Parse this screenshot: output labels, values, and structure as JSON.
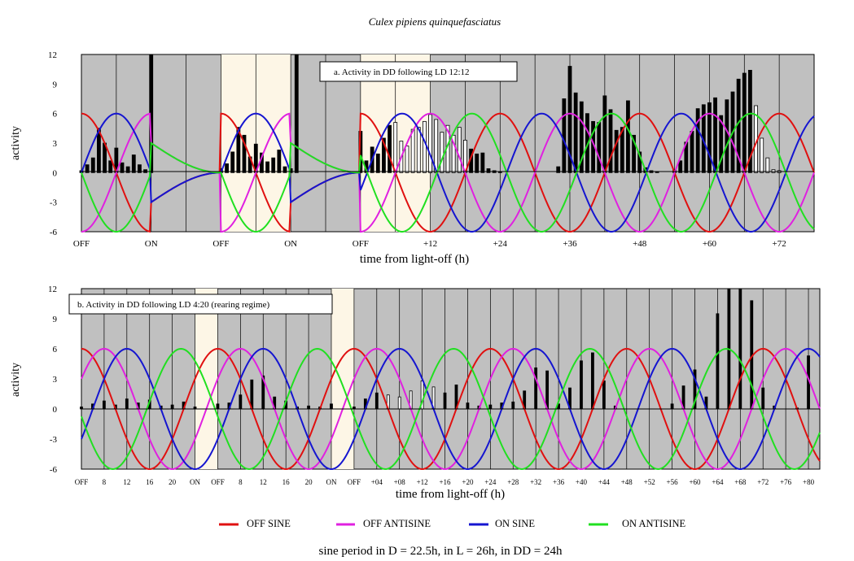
{
  "title": "Culex pipiens quinquefasciatus",
  "footer": "sine period in D = 22.5h, in L = 26h, in DD = 24h",
  "colors": {
    "off_sine": "#e01010",
    "off_antisine": "#e020e0",
    "on_sine": "#1515d0",
    "on_antisine": "#20e020",
    "dark_background": "#c0c0c0",
    "light_background": "#fdf6e6"
  },
  "legend": [
    {
      "label": "OFF SINE",
      "color": "#e01010"
    },
    {
      "label": "OFF ANTISINE",
      "color": "#e020e0"
    },
    {
      "label": "ON SINE",
      "color": "#1515d0"
    },
    {
      "label": "ON ANTISINE",
      "color": "#20e020"
    }
  ],
  "chart_data": [
    {
      "type": "bar",
      "annotation": "a.  Activity in DD following LD 12:12",
      "xlabel": "time from light-off (h)",
      "ylabel": "activity",
      "ylim": [
        -6,
        12
      ],
      "yticks": [
        -6,
        -3,
        0,
        3,
        6,
        9,
        12
      ],
      "xticks": [
        "OFF",
        "ON",
        "OFF",
        "ON",
        "OFF",
        "+12",
        "+24",
        "+36",
        "+48",
        "+60",
        "+72"
      ],
      "xlim_hours": [
        -48,
        78
      ],
      "light_phases_hours": [
        [
          -24,
          -12
        ],
        [
          0,
          12
        ]
      ],
      "light_phases_label": "ON → OFF",
      "phase_boundaries": {
        "light_on": [
          -36,
          -12
        ],
        "light_off": [
          -48,
          -24,
          0
        ]
      },
      "series": [
        {
          "name": "OFF SINE",
          "values_hours": [
            -48,
            -24,
            0
          ],
          "values_note_hours": "curves restart at light-off",
          "curve": "off_sine"
        },
        {
          "name": "OFF ANTISINE",
          "curve": "off_antisine"
        },
        {
          "name": "ON SINE",
          "curve": "on_sine"
        },
        {
          "name": "ON ANTISINE",
          "curve": "on_antisine"
        }
      ],
      "activity_hours": [
        -48,
        -47,
        -46,
        -45,
        -44,
        -43,
        -42,
        -41,
        -40,
        -39,
        -38,
        -37,
        -36,
        -24,
        -23,
        -22,
        -21,
        -20,
        -19,
        -18,
        -17,
        -16,
        -15,
        -14,
        -13,
        -12,
        -11,
        0,
        1,
        2,
        3,
        4,
        5,
        6,
        7,
        8,
        9,
        10,
        11,
        12,
        13,
        14,
        15,
        16,
        17,
        18,
        19,
        20,
        21,
        22,
        23,
        24,
        25,
        26,
        27,
        28,
        29,
        30,
        31,
        32,
        33,
        34,
        35,
        36,
        37,
        38,
        39,
        40,
        41,
        42,
        43,
        44,
        45,
        46,
        47,
        48,
        49,
        50,
        51,
        52,
        53,
        54,
        55,
        56,
        57,
        58,
        59,
        60,
        61,
        62,
        63,
        64,
        65,
        66,
        67,
        68,
        69,
        70,
        71,
        72,
        73,
        74,
        75
      ],
      "activity_values": [
        0.2,
        0.8,
        1.5,
        4.5,
        3.0,
        1.2,
        2.5,
        1.0,
        0.6,
        1.8,
        0.8,
        0.3,
        12,
        0.4,
        0.9,
        2.1,
        4.6,
        3.8,
        1.6,
        2.9,
        2.0,
        1.1,
        1.5,
        2.3,
        0.6,
        0.4,
        12,
        4.2,
        1.2,
        2.6,
        1.9,
        3.5,
        4.8,
        5.1,
        3.2,
        2.7,
        4.4,
        4.6,
        5.2,
        5.9,
        5.4,
        4.1,
        4.8,
        3.8,
        4.6,
        3.3,
        2.4,
        1.9,
        2.0,
        0.4,
        0.2,
        0.1,
        0.0,
        0.0,
        0.0,
        0.0,
        0.0,
        0.0,
        0.0,
        0.0,
        0.0,
        0.6,
        7.5,
        10.8,
        8.1,
        7.2,
        6.0,
        5.2,
        5.1,
        7.8,
        6.4,
        4.3,
        4.6,
        7.3,
        3.8,
        2.1,
        0.5,
        0.2,
        0.1,
        0.0,
        0.0,
        0.3,
        1.2,
        3.1,
        4.2,
        6.5,
        6.9,
        7.1,
        7.6,
        5.8,
        7.4,
        8.2,
        9.5,
        10.1,
        10.4,
        6.8,
        3.5,
        1.5,
        0.3,
        0.2
      ]
    },
    {
      "type": "bar",
      "annotation": "b.  Activity in DD following LD 4:20 (rearing regime)",
      "xlabel": "time from light-off (h)",
      "ylabel": "activity",
      "ylim": [
        -6,
        12
      ],
      "yticks": [
        -6,
        -3,
        0,
        3,
        6,
        9,
        12
      ],
      "xticks": [
        "OFF",
        "8",
        "12",
        "16",
        "20",
        "ON",
        "OFF",
        "8",
        "12",
        "16",
        "20",
        "ON",
        "OFF",
        "+04",
        "+08",
        "+12",
        "+16",
        "+20",
        "+24",
        "+28",
        "+32",
        "+36",
        "+40",
        "+44",
        "+48",
        "+52",
        "+56",
        "+60",
        "+64",
        "+68",
        "+72",
        "+76",
        "+80"
      ],
      "xlim_hours": [
        -48,
        82
      ],
      "light_phases_hours": [
        [
          -28,
          -24
        ],
        [
          -4,
          0
        ]
      ],
      "activity_hours": [
        -48,
        -46,
        -44,
        -42,
        -40,
        -38,
        -36,
        -34,
        -32,
        -30,
        -28,
        -24,
        -22,
        -20,
        -18,
        -16,
        -14,
        -12,
        -10,
        -8,
        -6,
        -4,
        0,
        2,
        4,
        6,
        8,
        10,
        12,
        14,
        16,
        18,
        20,
        22,
        24,
        26,
        28,
        30,
        32,
        34,
        36,
        38,
        40,
        42,
        44,
        46,
        48,
        50,
        52,
        54,
        56,
        58,
        60,
        62,
        64,
        66,
        68,
        70,
        72,
        74,
        76,
        78,
        80
      ],
      "activity_values": [
        0.2,
        0.5,
        0.8,
        0.4,
        1.0,
        0.6,
        0.9,
        0.3,
        0.4,
        0.7,
        0.2,
        0.5,
        0.6,
        1.4,
        2.9,
        3.3,
        1.2,
        0.8,
        0.2,
        0.3,
        0.2,
        0.5,
        0.2,
        1.0,
        1.6,
        1.4,
        1.2,
        1.8,
        2.8,
        2.2,
        1.6,
        2.4,
        0.6,
        0.3,
        0.4,
        0.6,
        0.7,
        1.8,
        4.1,
        3.8,
        0.5,
        2.1,
        4.8,
        5.6,
        2.8,
        0.3,
        0.0,
        0.0,
        0.0,
        0.0,
        0.5,
        2.3,
        3.9,
        1.2,
        9.5,
        12,
        12,
        10.8,
        2.1,
        0.3,
        0.0,
        0.1,
        5.3
      ]
    }
  ]
}
